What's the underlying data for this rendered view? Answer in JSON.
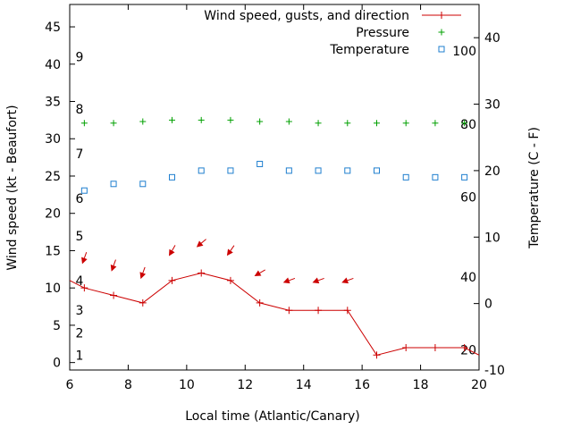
{
  "chart_data": {
    "type": "line",
    "xlabel": "Local time (Atlantic/Canary)",
    "ylabel": "Wind speed (kt - Beaufort)",
    "y2label": "Temperature (C - F)",
    "xlim": [
      6,
      20
    ],
    "ylim": [
      -1,
      48
    ],
    "y2lim": [
      -10,
      45
    ],
    "x_ticks": [
      6,
      8,
      10,
      12,
      14,
      16,
      18,
      20
    ],
    "y_ticks": [
      0,
      5,
      10,
      15,
      20,
      25,
      30,
      35,
      40,
      45
    ],
    "y2_ticks": [
      -10,
      0,
      10,
      20,
      30,
      40
    ],
    "beaufort_labels": [
      {
        "value": "1",
        "y": 1
      },
      {
        "value": "2",
        "y": 4
      },
      {
        "value": "3",
        "y": 7
      },
      {
        "value": "4",
        "y": 11
      },
      {
        "value": "5",
        "y": 17
      },
      {
        "value": "6",
        "y": 22
      },
      {
        "value": "7",
        "y": 28
      },
      {
        "value": "8",
        "y": 34
      },
      {
        "value": "9",
        "y": 41
      }
    ],
    "fahrenheit_labels": [
      {
        "value": "20",
        "y2": -7
      },
      {
        "value": "40",
        "y2": 4
      },
      {
        "value": "60",
        "y2": 16
      },
      {
        "value": "80",
        "y2": 27
      },
      {
        "value": "100",
        "y2": 38
      }
    ],
    "legend": {
      "position": "top-right",
      "entries": [
        {
          "label": "Wind speed, gusts, and direction",
          "color": "#cc0000",
          "marker": "line-plus"
        },
        {
          "label": "Pressure",
          "color": "#00a000",
          "marker": "plus"
        },
        {
          "label": "Temperature",
          "color": "#1f7fcf",
          "marker": "square"
        }
      ]
    },
    "series": [
      {
        "name": "Wind speed, gusts, and direction",
        "axis": "y",
        "color": "#cc0000",
        "x": [
          5.5,
          6.5,
          7.5,
          8.5,
          9.5,
          10.5,
          11.5,
          12.5,
          13.5,
          14.5,
          15.5,
          16.5,
          17.5,
          18.5,
          19.5,
          20.5
        ],
        "y": [
          12,
          10,
          9,
          8,
          11,
          12,
          11,
          8,
          7,
          7,
          7,
          1,
          2,
          2,
          2,
          0
        ],
        "arrows": [
          {
            "x": 6.5,
            "y": 14,
            "dir_deg": 20
          },
          {
            "x": 7.5,
            "y": 13,
            "dir_deg": 20
          },
          {
            "x": 8.5,
            "y": 12,
            "dir_deg": 20
          },
          {
            "x": 9.5,
            "y": 15,
            "dir_deg": 30
          },
          {
            "x": 10.5,
            "y": 16,
            "dir_deg": 50
          },
          {
            "x": 11.5,
            "y": 15,
            "dir_deg": 35
          },
          {
            "x": 12.5,
            "y": 12,
            "dir_deg": 60
          },
          {
            "x": 13.5,
            "y": 11,
            "dir_deg": 70
          },
          {
            "x": 14.5,
            "y": 11,
            "dir_deg": 70
          },
          {
            "x": 15.5,
            "y": 11,
            "dir_deg": 70
          }
        ]
      },
      {
        "name": "Pressure",
        "axis": "y",
        "color": "#00a000",
        "x": [
          6.5,
          7.5,
          8.5,
          9.5,
          10.5,
          11.5,
          12.5,
          13.5,
          14.5,
          15.5,
          16.5,
          17.5,
          18.5,
          19.5
        ],
        "y": [
          32.1,
          32.1,
          32.3,
          32.5,
          32.5,
          32.5,
          32.3,
          32.3,
          32.1,
          32.1,
          32.1,
          32.1,
          32.1,
          32.1
        ]
      },
      {
        "name": "Temperature",
        "axis": "y2",
        "color": "#1f7fcf",
        "x": [
          6.5,
          7.5,
          8.5,
          9.5,
          10.5,
          11.5,
          12.5,
          13.5,
          14.5,
          15.5,
          16.5,
          17.5,
          18.5,
          19.5
        ],
        "y": [
          17,
          18,
          18,
          19,
          20,
          20,
          21,
          20,
          20,
          20,
          20,
          19,
          19,
          19
        ]
      }
    ]
  }
}
